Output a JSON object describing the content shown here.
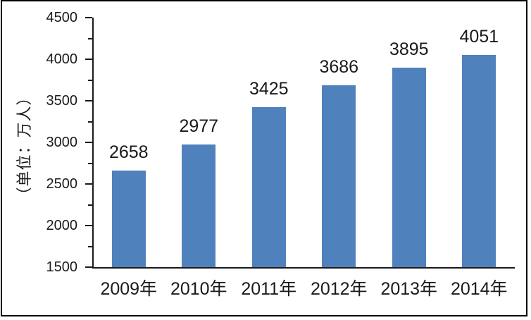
{
  "chart_data": {
    "type": "bar",
    "title": "",
    "categories": [
      "2009年",
      "2010年",
      "2011年",
      "2012年",
      "2013年",
      "2014年"
    ],
    "values": [
      2658,
      2977,
      3425,
      3686,
      3895,
      4051
    ],
    "data_labels": [
      "2658",
      "2977",
      "3425",
      "3686",
      "3895",
      "4051"
    ],
    "xlabel": "",
    "ylabel": "（单位：万人）",
    "ylim": [
      1500,
      4500
    ],
    "ytick_interval": 500,
    "ytick_minor_interval": 250,
    "ytick_labels": [
      "1500",
      "2000",
      "2500",
      "3000",
      "3500",
      "4000",
      "4500"
    ],
    "grid": false,
    "legend": null,
    "colors": {
      "bar_fill": "#4F81BD",
      "axis": "#1a1a1a",
      "text": "#1a1a1a",
      "background": "#FFFFFF",
      "frame_border": "#000000"
    }
  }
}
